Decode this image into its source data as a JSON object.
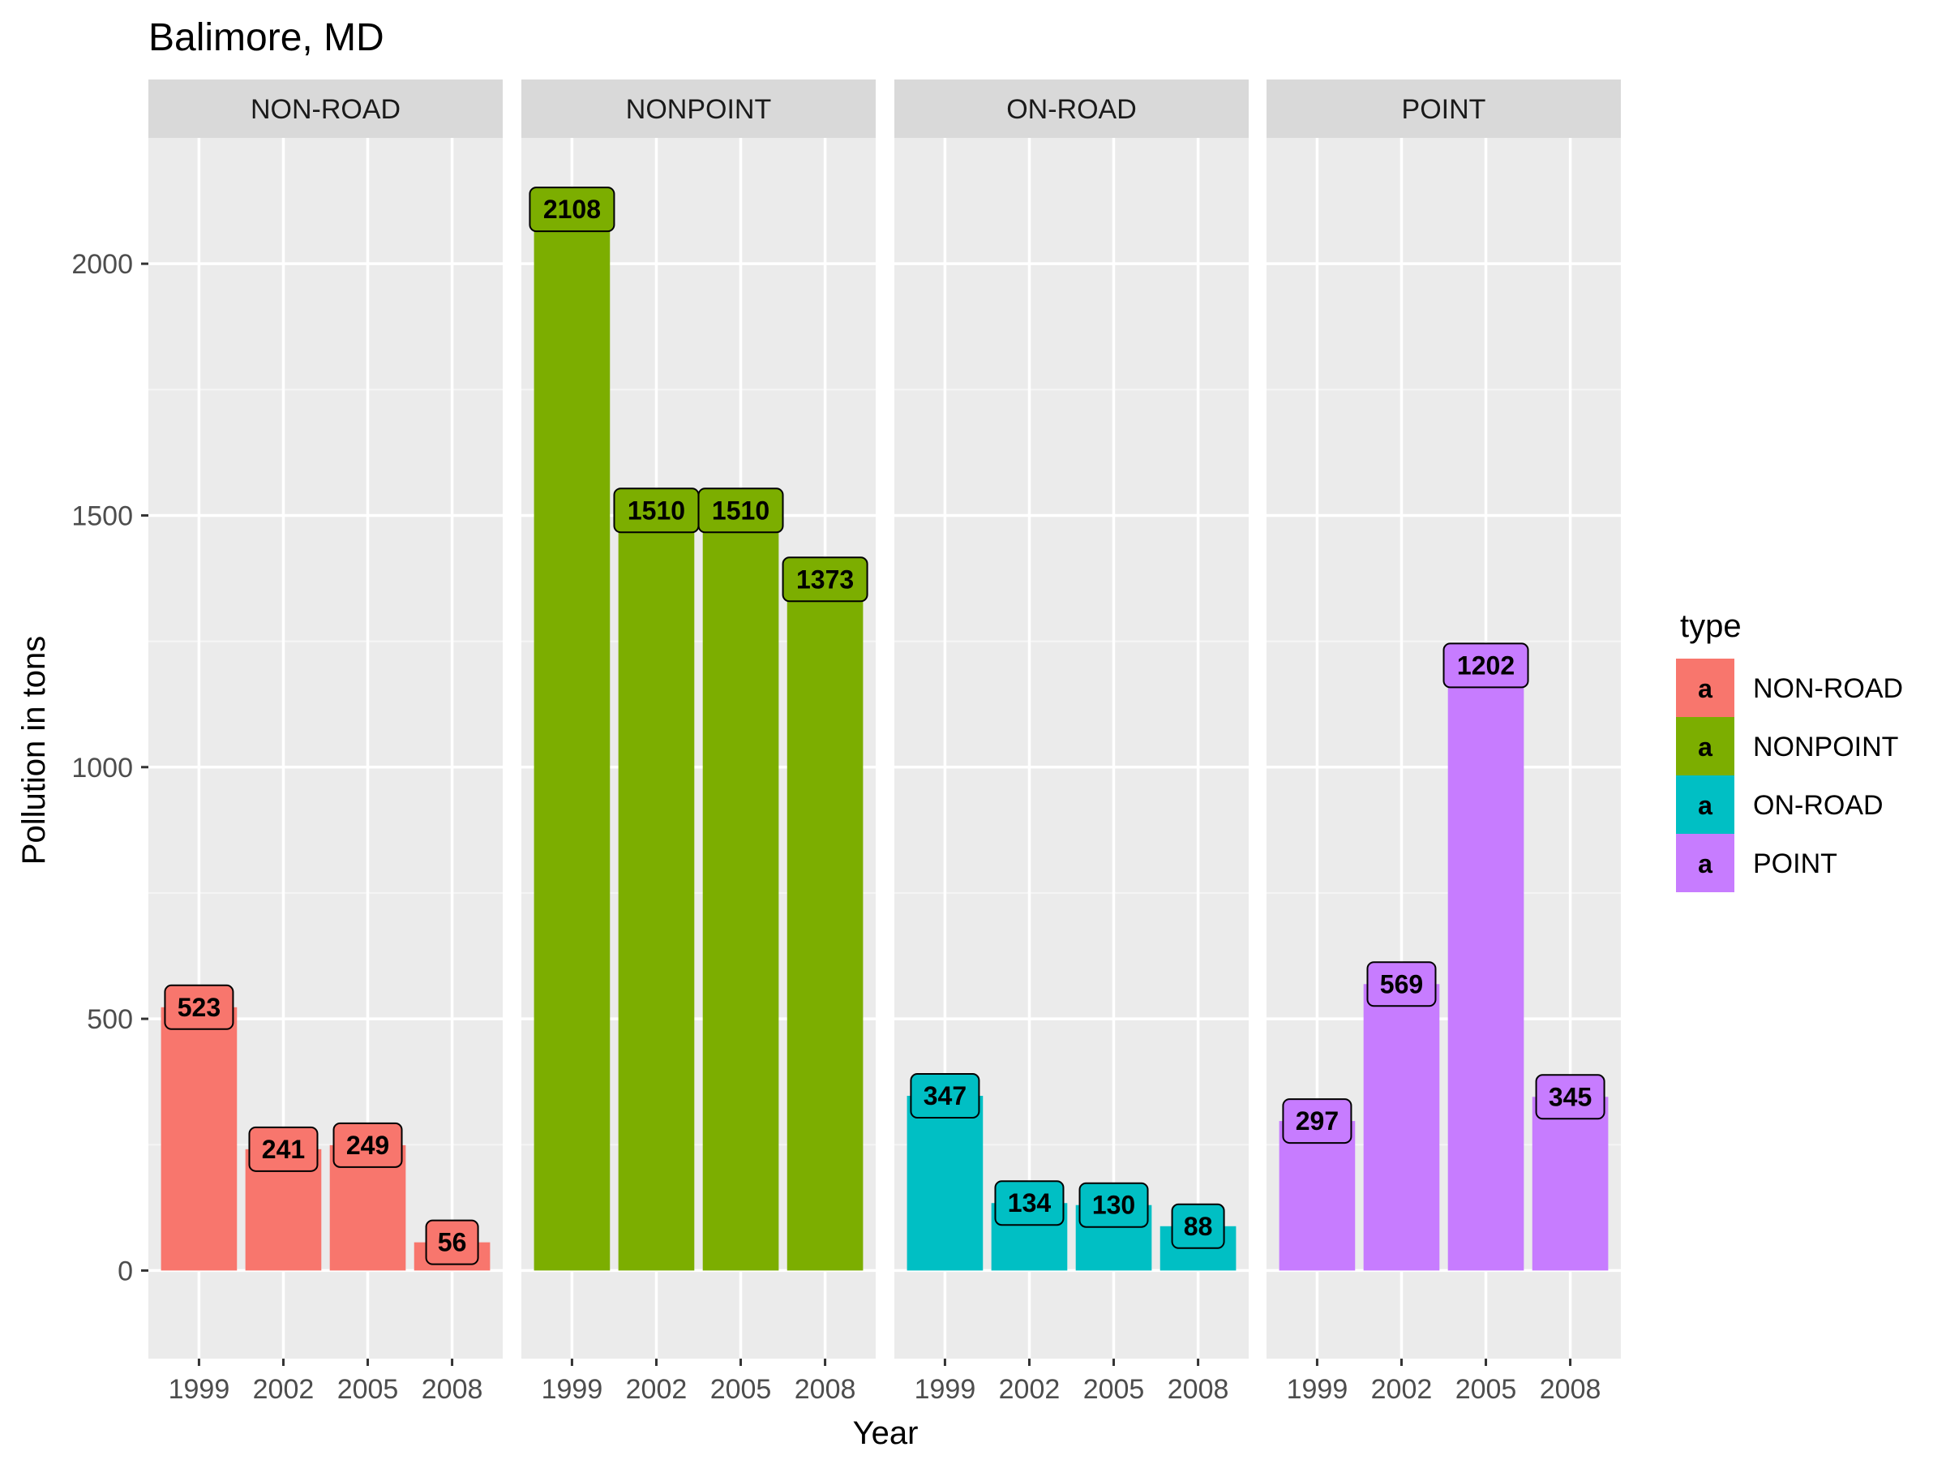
{
  "chart_data": {
    "type": "bar",
    "title": "Balimore, MD",
    "xlabel": "Year",
    "ylabel": "Pollution in tons",
    "categories": [
      "1999",
      "2002",
      "2005",
      "2008"
    ],
    "ylim": [
      -175,
      2250
    ],
    "yticks": [
      0,
      500,
      1000,
      1500,
      2000
    ],
    "grid": true,
    "legend": {
      "title": "type",
      "placement": "right",
      "key_glyph": "a"
    },
    "facets": [
      {
        "name": "NON-ROAD",
        "color": "#F8766D",
        "values": [
          523,
          241,
          249,
          56
        ]
      },
      {
        "name": "NONPOINT",
        "color": "#7CAE00",
        "values": [
          2108,
          1510,
          1510,
          1373
        ]
      },
      {
        "name": "ON-ROAD",
        "color": "#00BFC4",
        "values": [
          347,
          134,
          130,
          88
        ]
      },
      {
        "name": "POINT",
        "color": "#C77CFF",
        "values": [
          297,
          569,
          1202,
          345
        ]
      }
    ]
  },
  "colors": {
    "panel_background": "#EBEBEB",
    "strip_background": "#D9D9D9",
    "grid_major": "#FFFFFF",
    "grid_minor": "#F5F5F5"
  }
}
